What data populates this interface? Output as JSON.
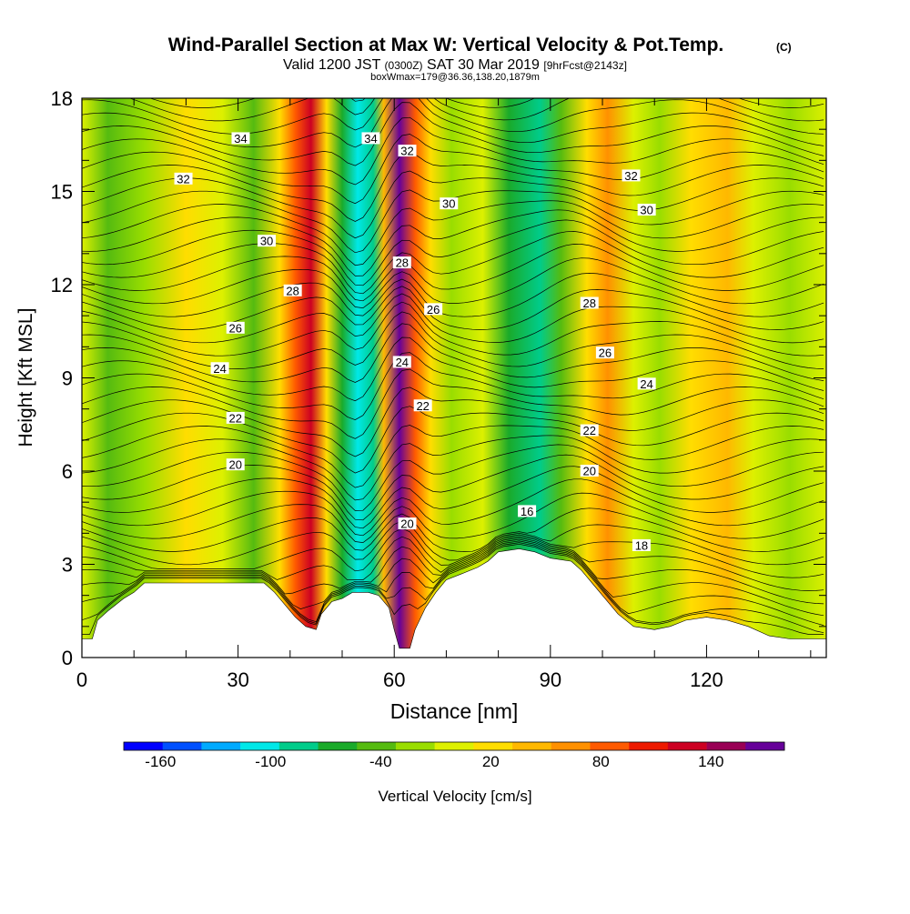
{
  "header": {
    "title": "Wind-Parallel Section at Max W: Vertical Velocity & Pot.Temp.",
    "title_mark": "(C)",
    "valid_pre": "Valid 1200 JST",
    "valid_utc": "(0300Z)",
    "valid_post": "SAT 30 Mar 2019",
    "forecast": "[9hrFcst@2143z]",
    "box_info": "boxWmax=179@36.36,138.20,1879m"
  },
  "chart_data": {
    "type": "heatmap",
    "xlabel": "Distance [nm]",
    "ylabel": "Height [Kft MSL]",
    "xlim": [
      0,
      143
    ],
    "ylim": [
      0,
      18
    ],
    "x_ticks": [
      0,
      30,
      60,
      90,
      120
    ],
    "y_ticks": [
      0,
      3,
      6,
      9,
      12,
      15,
      18
    ],
    "colorbar": {
      "label": "Vertical Velocity [cm/s]",
      "range": [
        -180,
        180
      ],
      "tick_values": [
        -160,
        -100,
        -40,
        20,
        80,
        140
      ],
      "tick_labels": [
        "-160",
        "-100",
        "-40",
        "20",
        "80",
        "140"
      ],
      "colors": [
        "#0000ff",
        "#0050ff",
        "#00aaff",
        "#00e8e8",
        "#00cc8a",
        "#1aaa2a",
        "#55bb10",
        "#99dd00",
        "#ddf000",
        "#ffdd00",
        "#ffb800",
        "#ff9000",
        "#ff5a00",
        "#ee1a00",
        "#cc0022",
        "#990055",
        "#660099"
      ]
    },
    "velocity_bands": [
      {
        "x": 0,
        "w": -10
      },
      {
        "x": 5,
        "w": -35
      },
      {
        "x": 12,
        "w": -15
      },
      {
        "x": 20,
        "w": 25
      },
      {
        "x": 27,
        "w": -5
      },
      {
        "x": 33,
        "w": -40
      },
      {
        "x": 38,
        "w": 20
      },
      {
        "x": 41,
        "w": 90
      },
      {
        "x": 44,
        "w": 125
      },
      {
        "x": 47,
        "w": 30
      },
      {
        "x": 50,
        "w": -60
      },
      {
        "x": 53,
        "w": -105
      },
      {
        "x": 56,
        "w": -85
      },
      {
        "x": 58,
        "w": 40
      },
      {
        "x": 61,
        "w": 170
      },
      {
        "x": 64,
        "w": 95
      },
      {
        "x": 67,
        "w": 20
      },
      {
        "x": 71,
        "w": -15
      },
      {
        "x": 77,
        "w": 5
      },
      {
        "x": 82,
        "w": -55
      },
      {
        "x": 88,
        "w": -95
      },
      {
        "x": 92,
        "w": -40
      },
      {
        "x": 97,
        "w": 20
      },
      {
        "x": 101,
        "w": 55
      },
      {
        "x": 106,
        "w": 0
      },
      {
        "x": 111,
        "w": -30
      },
      {
        "x": 117,
        "w": 25
      },
      {
        "x": 124,
        "w": 40
      },
      {
        "x": 129,
        "w": 10
      },
      {
        "x": 136,
        "w": -15
      },
      {
        "x": 143,
        "w": 5
      }
    ],
    "terrain": [
      [
        0,
        0.6
      ],
      [
        2,
        0.6
      ],
      [
        3,
        1.2
      ],
      [
        5,
        1.5
      ],
      [
        8,
        1.9
      ],
      [
        10,
        2.1
      ],
      [
        12,
        2.4
      ],
      [
        23,
        2.4
      ],
      [
        35,
        2.4
      ],
      [
        37,
        2.1
      ],
      [
        39,
        1.7
      ],
      [
        41,
        1.3
      ],
      [
        43,
        1.0
      ],
      [
        45,
        0.9
      ],
      [
        46,
        1.4
      ],
      [
        48,
        1.8
      ],
      [
        50,
        1.9
      ],
      [
        52,
        2.1
      ],
      [
        55,
        2.1
      ],
      [
        57,
        2.0
      ],
      [
        59,
        1.6
      ],
      [
        60,
        0.9
      ],
      [
        61,
        0.3
      ],
      [
        63,
        0.3
      ],
      [
        64,
        0.9
      ],
      [
        66,
        1.6
      ],
      [
        68,
        2.1
      ],
      [
        70,
        2.5
      ],
      [
        73,
        2.7
      ],
      [
        76,
        2.9
      ],
      [
        78,
        3.1
      ],
      [
        80,
        3.4
      ],
      [
        84,
        3.5
      ],
      [
        87,
        3.4
      ],
      [
        90,
        3.2
      ],
      [
        94,
        3.1
      ],
      [
        96,
        2.8
      ],
      [
        98,
        2.4
      ],
      [
        100,
        2.0
      ],
      [
        103,
        1.4
      ],
      [
        106,
        1.0
      ],
      [
        110,
        0.9
      ],
      [
        113,
        1.0
      ],
      [
        116,
        1.2
      ],
      [
        120,
        1.3
      ],
      [
        124,
        1.2
      ],
      [
        128,
        1.0
      ],
      [
        132,
        0.7
      ],
      [
        136,
        0.6
      ],
      [
        143,
        0.6
      ]
    ],
    "contour_labels": [
      {
        "text": "34",
        "x": 30.5,
        "y": 16.7
      },
      {
        "text": "34",
        "x": 55.5,
        "y": 16.7
      },
      {
        "text": "32",
        "x": 19.5,
        "y": 15.4
      },
      {
        "text": "32",
        "x": 62.5,
        "y": 16.3
      },
      {
        "text": "32",
        "x": 105.5,
        "y": 15.5
      },
      {
        "text": "30",
        "x": 35.5,
        "y": 13.4
      },
      {
        "text": "30",
        "x": 70.5,
        "y": 14.6
      },
      {
        "text": "30",
        "x": 108.5,
        "y": 14.4
      },
      {
        "text": "28",
        "x": 40.5,
        "y": 11.8
      },
      {
        "text": "28",
        "x": 61.5,
        "y": 12.7
      },
      {
        "text": "28",
        "x": 97.5,
        "y": 11.4
      },
      {
        "text": "26",
        "x": 29.5,
        "y": 10.6
      },
      {
        "text": "26",
        "x": 67.5,
        "y": 11.2
      },
      {
        "text": "26",
        "x": 100.5,
        "y": 9.8
      },
      {
        "text": "24",
        "x": 26.5,
        "y": 9.3
      },
      {
        "text": "24",
        "x": 61.5,
        "y": 9.5
      },
      {
        "text": "24",
        "x": 108.5,
        "y": 8.8
      },
      {
        "text": "22",
        "x": 29.5,
        "y": 7.7
      },
      {
        "text": "22",
        "x": 65.5,
        "y": 8.1
      },
      {
        "text": "22",
        "x": 97.5,
        "y": 7.3
      },
      {
        "text": "20",
        "x": 29.5,
        "y": 6.2
      },
      {
        "text": "20",
        "x": 62.5,
        "y": 4.3
      },
      {
        "text": "20",
        "x": 97.5,
        "y": 6.0
      },
      {
        "text": "16",
        "x": 85.5,
        "y": 4.7
      },
      {
        "text": "18",
        "x": 107.5,
        "y": 3.6
      }
    ]
  }
}
